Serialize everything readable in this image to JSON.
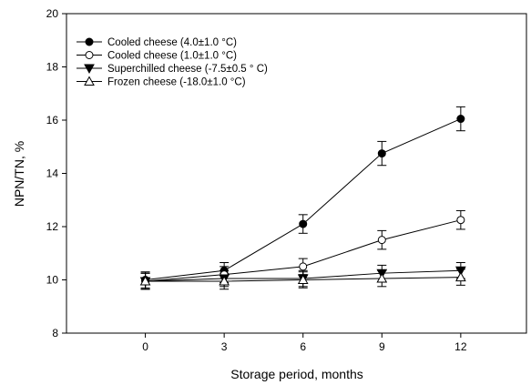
{
  "chart_data": {
    "type": "line",
    "xlabel": "Storage period, months",
    "ylabel": "NPN/TN, %",
    "xlim": [
      -3,
      14.5
    ],
    "ylim": [
      8,
      20
    ],
    "x": [
      0,
      3,
      6,
      9,
      12
    ],
    "xticks": [
      "0",
      "3",
      "6",
      "9",
      "12"
    ],
    "yticks": [
      "8",
      "10",
      "12",
      "14",
      "16",
      "18",
      "20"
    ],
    "legend_position": "top-left",
    "series": [
      {
        "name": "Cooled cheese (4.0±1.0 °C)",
        "marker": "circle-filled",
        "values": [
          10.0,
          10.35,
          12.1,
          14.75,
          16.05
        ],
        "errors": [
          0.3,
          0.3,
          0.35,
          0.45,
          0.45
        ]
      },
      {
        "name": "Cooled cheese (1.0±1.0 °C)",
        "marker": "circle-open",
        "values": [
          9.95,
          10.2,
          10.5,
          11.5,
          12.25
        ],
        "errors": [
          0.3,
          0.3,
          0.3,
          0.35,
          0.35
        ]
      },
      {
        "name": "Superchilled cheese (-7.5±0.5 ° C)",
        "marker": "triangle-down-filled",
        "values": [
          9.95,
          10.05,
          10.05,
          10.25,
          10.35
        ],
        "errors": [
          0.3,
          0.3,
          0.3,
          0.3,
          0.3
        ]
      },
      {
        "name": "Frozen cheese (-18.0±1.0 °C)",
        "marker": "triangle-up-open",
        "values": [
          9.95,
          9.95,
          10.0,
          10.05,
          10.1
        ],
        "errors": [
          0.3,
          0.3,
          0.3,
          0.3,
          0.3
        ]
      }
    ]
  }
}
